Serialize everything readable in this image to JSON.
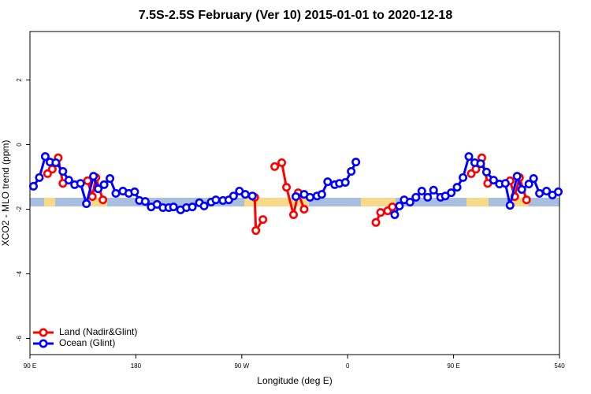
{
  "chart_data": {
    "type": "line",
    "title": "7.5S-2.5S February (Ver 10)   2015-01-01 to 2020-12-18",
    "x_label": "Longitude (deg E)",
    "y_label": "XCO2 - MLO trend (ppm)",
    "xlim": [
      90,
      540
    ],
    "xticks": [
      {
        "value": 90,
        "label": "90 E"
      },
      180,
      {
        "value": 270,
        "label": "90 W"
      },
      {
        "value": 360,
        "label": "0"
      },
      {
        "value": 450,
        "label": "90 E"
      },
      540
    ],
    "ylim": [
      -6.5,
      3.5
    ],
    "yticks": [
      2,
      0,
      -2,
      -4,
      -6
    ],
    "legend": "bottom-left",
    "series": [
      {
        "name": "Land (Nadir&Glint)",
        "color": "#ff0000",
        "x": [
          105,
          109,
          114,
          118,
          null,
          139,
          143,
          146,
          152,
          null,
          281,
          282,
          288,
          null,
          298,
          304,
          308,
          314,
          318,
          323,
          null,
          384,
          388,
          394,
          398,
          null,
          465,
          469,
          474,
          479,
          null,
          498,
          502,
          506,
          512
        ],
        "values": [
          -0.9,
          -0.76,
          -0.41,
          -1.2,
          null,
          -1.12,
          -1.61,
          -1.02,
          -1.71,
          null,
          -1.63,
          -2.66,
          -2.32,
          null,
          -0.68,
          -0.56,
          -1.32,
          -2.17,
          -1.49,
          -2.0,
          null,
          -2.41,
          -2.1,
          -2.05,
          -1.93,
          null,
          -0.9,
          -0.76,
          -0.41,
          -1.2,
          null,
          -1.12,
          -1.61,
          -1.02,
          -1.71
        ]
      },
      {
        "name": "Ocean (Glint)",
        "color": "#0000ff",
        "x": [
          93,
          98,
          103,
          107,
          112,
          118,
          123,
          128,
          133,
          138,
          144,
          148,
          153,
          158,
          163,
          169,
          174,
          179,
          183,
          188,
          193,
          198,
          203,
          208,
          212,
          218,
          223,
          228,
          234,
          238,
          244,
          248,
          254,
          259,
          263,
          268,
          273,
          279,
          null,
          316,
          323,
          328,
          334,
          338,
          343,
          349,
          353,
          358,
          363,
          367,
          null,
          400,
          404,
          408,
          413,
          418,
          423,
          428,
          433,
          439,
          443,
          448,
          453,
          458,
          463,
          468,
          473,
          478,
          484,
          489,
          494,
          498,
          504,
          508,
          514,
          518,
          523,
          529,
          534,
          539
        ],
        "values": [
          -1.29,
          -1.02,
          -0.37,
          -0.54,
          -0.56,
          -0.83,
          -1.1,
          -1.24,
          -1.2,
          -1.83,
          -0.98,
          -1.37,
          -1.24,
          -1.05,
          -1.51,
          -1.44,
          -1.51,
          -1.46,
          -1.73,
          -1.76,
          -1.93,
          -1.85,
          -1.95,
          -1.95,
          -1.93,
          -2.02,
          -1.95,
          -1.93,
          -1.8,
          -1.9,
          -1.78,
          -1.71,
          -1.73,
          -1.71,
          -1.59,
          -1.44,
          -1.54,
          -1.59,
          null,
          -1.61,
          -1.54,
          -1.63,
          -1.59,
          -1.54,
          -1.15,
          -1.24,
          -1.2,
          -1.17,
          -0.83,
          -0.54,
          null,
          -2.17,
          -1.9,
          -1.71,
          -1.78,
          -1.63,
          -1.44,
          -1.63,
          -1.41,
          -1.63,
          -1.59,
          -1.49,
          -1.32,
          -1.02,
          -0.37,
          -0.56,
          -0.59,
          -0.85,
          -1.1,
          -1.22,
          -1.2,
          -1.88,
          -0.98,
          -1.39,
          -1.22,
          -1.05,
          -1.51,
          -1.44,
          -1.56,
          -1.46
        ]
      }
    ]
  }
}
